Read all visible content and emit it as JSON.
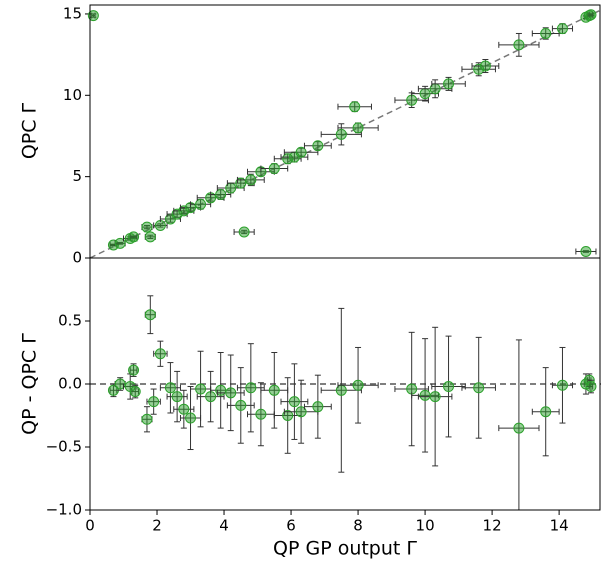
{
  "chart_data": [
    {
      "type": "scatter",
      "y_label": "QPC Γ",
      "color": "#2ca02c",
      "error_color": "#333333",
      "diagonal": true,
      "xlim": [
        0,
        15.25
      ],
      "ylim": [
        0,
        15.55
      ],
      "yticks": [
        0,
        5,
        10,
        15
      ],
      "x": [
        0.1,
        0.7,
        0.9,
        1.2,
        1.3,
        1.7,
        1.8,
        2.1,
        2.4,
        2.6,
        2.8,
        3.0,
        3.3,
        3.6,
        3.9,
        4.2,
        4.5,
        4.6,
        4.8,
        5.1,
        5.5,
        5.9,
        6.1,
        6.3,
        6.8,
        7.5,
        7.9,
        8.0,
        9.6,
        10.0,
        10.3,
        10.7,
        11.6,
        11.8,
        12.8,
        13.6,
        14.1,
        14.8,
        14.8,
        14.9,
        14.95
      ],
      "y": [
        14.9,
        0.8,
        0.9,
        1.2,
        1.3,
        1.9,
        1.3,
        2.0,
        2.4,
        2.7,
        2.9,
        3.1,
        3.3,
        3.7,
        3.9,
        4.3,
        4.6,
        1.6,
        4.8,
        5.3,
        5.5,
        6.1,
        6.2,
        6.5,
        6.9,
        7.6,
        9.3,
        8.0,
        9.7,
        10.1,
        10.4,
        10.7,
        11.6,
        11.8,
        13.1,
        13.8,
        14.1,
        0.4,
        14.8,
        14.9,
        14.95
      ],
      "xerr": [
        0.05,
        0.1,
        0.15,
        0.2,
        0.1,
        0.15,
        0.15,
        0.2,
        0.3,
        0.3,
        0.3,
        0.3,
        0.3,
        0.4,
        0.3,
        0.4,
        0.4,
        0.3,
        0.4,
        0.4,
        0.4,
        0.4,
        0.4,
        0.5,
        0.4,
        0.6,
        0.5,
        0.6,
        0.5,
        0.4,
        0.5,
        0.5,
        0.5,
        0.4,
        0.6,
        0.4,
        0.3,
        0.3,
        0.05,
        0.05,
        0.05
      ],
      "yerr": [
        0.1,
        0.05,
        0.05,
        0.1,
        0.05,
        0.1,
        0.1,
        0.1,
        0.2,
        0.2,
        0.15,
        0.25,
        0.3,
        0.2,
        0.3,
        0.3,
        0.3,
        0.1,
        0.35,
        0.25,
        0.3,
        0.3,
        0.3,
        0.25,
        0.25,
        0.65,
        0.3,
        0.3,
        0.45,
        0.45,
        0.55,
        0.4,
        0.4,
        0.4,
        0.7,
        0.35,
        0.3,
        0.05,
        0.08,
        0.05,
        0.05
      ]
    },
    {
      "type": "scatter",
      "y_label": "QP - QPC Γ",
      "x_label": "QP GP output Γ",
      "color": "#2ca02c",
      "error_color": "#333333",
      "reference_line": 0,
      "xlim": [
        0,
        15.25
      ],
      "ylim": [
        -1.0,
        1.0
      ],
      "xticks": [
        0,
        2,
        4,
        6,
        8,
        10,
        12,
        14
      ],
      "yticks": [
        0.5,
        {
          "value": 0,
          "label": "0.0"
        },
        {
          "value": -0.5,
          "label": "−0.5"
        },
        {
          "value": -1.0,
          "label": "−1.0"
        }
      ],
      "x": [
        0.7,
        0.9,
        1.2,
        1.3,
        1.35,
        1.7,
        1.8,
        1.9,
        2.1,
        2.4,
        2.6,
        2.8,
        3.0,
        3.3,
        3.6,
        3.9,
        4.2,
        4.5,
        4.8,
        5.1,
        5.5,
        5.9,
        6.1,
        6.3,
        6.8,
        7.5,
        8.0,
        9.6,
        10.0,
        10.3,
        10.7,
        11.6,
        12.8,
        13.6,
        14.1,
        14.8,
        14.9,
        14.95
      ],
      "y": [
        -0.05,
        0.0,
        -0.02,
        0.11,
        -0.06,
        -0.28,
        0.55,
        -0.14,
        0.24,
        -0.03,
        -0.1,
        -0.2,
        -0.27,
        -0.04,
        -0.1,
        -0.05,
        -0.07,
        -0.17,
        -0.03,
        -0.24,
        -0.05,
        -0.25,
        -0.14,
        -0.22,
        -0.18,
        -0.05,
        -0.01,
        -0.04,
        -0.09,
        -0.1,
        -0.02,
        -0.03,
        -0.35,
        -0.22,
        -0.01,
        0.0,
        0.03,
        -0.02
      ],
      "xerr": [
        0.1,
        0.15,
        0.2,
        0.1,
        0.1,
        0.15,
        0.15,
        0.2,
        0.2,
        0.3,
        0.3,
        0.3,
        0.3,
        0.3,
        0.4,
        0.3,
        0.4,
        0.4,
        0.4,
        0.4,
        0.4,
        0.4,
        0.4,
        0.5,
        0.4,
        0.6,
        0.6,
        0.5,
        0.4,
        0.5,
        0.5,
        0.5,
        0.6,
        0.4,
        0.3,
        0.05,
        0.05,
        0.05
      ],
      "yerr": [
        0.05,
        0.05,
        0.1,
        0.05,
        0.05,
        0.1,
        0.15,
        0.1,
        0.1,
        0.2,
        0.2,
        0.15,
        0.25,
        0.3,
        0.2,
        0.3,
        0.3,
        0.3,
        0.35,
        0.25,
        0.3,
        0.3,
        0.3,
        0.25,
        0.25,
        0.65,
        0.3,
        0.45,
        0.45,
        0.55,
        0.4,
        0.4,
        0.7,
        0.35,
        0.3,
        0.08,
        0.05,
        0.05
      ]
    }
  ]
}
